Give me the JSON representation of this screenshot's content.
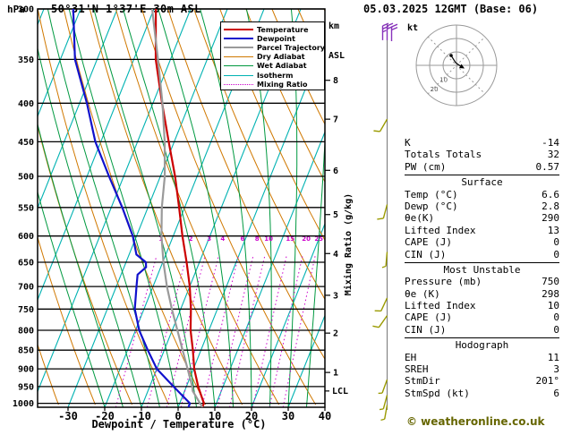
{
  "header": {
    "pressure_unit": "hPa",
    "station": "50°31'N 1°37'E 30m ASL",
    "datetime": "05.03.2025 12GMT (Base: 06)",
    "alt_unit_line1": "km",
    "alt_unit_line2": "ASL"
  },
  "legend": {
    "items": [
      {
        "label": "Temperature",
        "color": "#cc0000",
        "dash": ""
      },
      {
        "label": "Dewpoint",
        "color": "#1111cc",
        "dash": ""
      },
      {
        "label": "Parcel Trajectory",
        "color": "#9a9a9a",
        "dash": ""
      },
      {
        "label": "Dry Adiabat",
        "color": "#d07800",
        "dash": ""
      },
      {
        "label": "Wet Adiabat",
        "color": "#009940",
        "dash": ""
      },
      {
        "label": "Isotherm",
        "color": "#00b2b2",
        "dash": ""
      },
      {
        "label": "Mixing Ratio",
        "color": "#cc00cc",
        "dash": "dotted"
      }
    ]
  },
  "axes": {
    "xlabel": "Dewpoint / Temperature (°C)",
    "right_axis_label": "Mixing Ratio (g/kg)",
    "pressure_ticks": [
      300,
      350,
      400,
      450,
      500,
      550,
      600,
      650,
      700,
      750,
      800,
      850,
      900,
      950,
      1000
    ],
    "temp_ticks": [
      -30,
      -20,
      -10,
      0,
      10,
      20,
      30,
      40
    ],
    "km_ticks": [
      {
        "label": "8",
        "p": 373
      },
      {
        "label": "7",
        "p": 420
      },
      {
        "label": "6",
        "p": 491
      },
      {
        "label": "5",
        "p": 562
      },
      {
        "label": "4",
        "p": 633
      },
      {
        "label": "3",
        "p": 719
      },
      {
        "label": "2",
        "p": 807
      },
      {
        "label": "1",
        "p": 910
      }
    ],
    "lcl": {
      "label": "LCL",
      "p": 963
    },
    "mixing_ratio_values": [
      1,
      2,
      3,
      4,
      6,
      8,
      10,
      15,
      20,
      25
    ]
  },
  "chart_data": {
    "type": "line",
    "title": "Skew-T log-P sounding 50°31'N 1°37'E 30m ASL 05.03.2025 12GMT (Base: 06)",
    "x_axis": {
      "label": "Dewpoint / Temperature (°C)",
      "range": [
        -40,
        40
      ],
      "skewed_isotherms": true
    },
    "y_axis": {
      "label": "hPa",
      "scale": "log",
      "range": [
        300,
        1012
      ]
    },
    "series": [
      {
        "name": "Temperature",
        "color": "#cc0000",
        "points": [
          [
            1012,
            6.6
          ],
          [
            1000,
            6.6
          ],
          [
            950,
            3.2
          ],
          [
            900,
            0.2
          ],
          [
            850,
            -2.2
          ],
          [
            800,
            -5.0
          ],
          [
            750,
            -7.2
          ],
          [
            700,
            -10.0
          ],
          [
            650,
            -13.5
          ],
          [
            600,
            -17.5
          ],
          [
            550,
            -21.5
          ],
          [
            500,
            -26.0
          ],
          [
            450,
            -31.5
          ],
          [
            400,
            -37.5
          ],
          [
            350,
            -44.0
          ],
          [
            300,
            -49.5
          ]
        ]
      },
      {
        "name": "Dewpoint",
        "color": "#1111cc",
        "points": [
          [
            1012,
            2.8
          ],
          [
            1000,
            2.8
          ],
          [
            950,
            -3.5
          ],
          [
            900,
            -10.0
          ],
          [
            850,
            -14.5
          ],
          [
            800,
            -19.0
          ],
          [
            750,
            -22.5
          ],
          [
            700,
            -24.5
          ],
          [
            675,
            -25.5
          ],
          [
            660,
            -24.0
          ],
          [
            650,
            -24.6
          ],
          [
            635,
            -28.0
          ],
          [
            600,
            -31.0
          ],
          [
            550,
            -37.0
          ],
          [
            500,
            -44.0
          ],
          [
            450,
            -51.5
          ],
          [
            400,
            -58.0
          ],
          [
            350,
            -66.0
          ],
          [
            300,
            -72.0
          ]
        ]
      },
      {
        "name": "Parcel Trajectory",
        "color": "#9a9a9a",
        "points": [
          [
            1012,
            6.6
          ],
          [
            963,
            2.2
          ],
          [
            950,
            1.6
          ],
          [
            900,
            -1.6
          ],
          [
            850,
            -5.0
          ],
          [
            800,
            -8.6
          ],
          [
            750,
            -12.4
          ],
          [
            700,
            -16.2
          ],
          [
            650,
            -19.8
          ],
          [
            600,
            -23.2
          ],
          [
            550,
            -26.2
          ],
          [
            500,
            -28.8
          ],
          [
            450,
            -32.6
          ],
          [
            400,
            -37.4
          ],
          [
            350,
            -43.4
          ],
          [
            300,
            -50.5
          ]
        ]
      }
    ]
  },
  "wind_barbs": [
    {
      "p": 330,
      "dx": -5,
      "speed": 25,
      "dir": 0,
      "color": "#8833bb"
    },
    {
      "p": 330,
      "dx": 0,
      "speed": 20,
      "dir": 0,
      "color": "#8833bb"
    },
    {
      "p": 331,
      "dx": 5,
      "speed": 20,
      "dir": 0,
      "color": "#8833bb"
    },
    {
      "p": 420,
      "speed": 10,
      "dir": 210,
      "color": "#9a9a00"
    },
    {
      "p": 545,
      "speed": 10,
      "dir": 195,
      "color": "#9a9a00"
    },
    {
      "p": 630,
      "speed": 5,
      "dir": 185,
      "color": "#9a9a00"
    },
    {
      "p": 725,
      "speed": 10,
      "dir": 205,
      "color": "#9a9a00"
    },
    {
      "p": 765,
      "speed": 10,
      "dir": 215,
      "color": "#9a9a00"
    },
    {
      "p": 930,
      "speed": 5,
      "dir": 200,
      "color": "#9a9a00"
    },
    {
      "p": 975,
      "speed": 5,
      "dir": 195,
      "color": "#9a9a00"
    },
    {
      "p": 1005,
      "speed": 6,
      "dir": 190,
      "color": "#9a9a00"
    }
  ],
  "hodograph": {
    "unit": "kt",
    "ring_labels": [
      "10",
      "20"
    ]
  },
  "indices": {
    "rows_top": [
      {
        "label": "K",
        "value": "-14"
      },
      {
        "label": "Totals Totals",
        "value": "32"
      },
      {
        "label": "PW (cm)",
        "value": "0.57"
      }
    ],
    "sections": [
      {
        "title": "Surface",
        "rows": [
          {
            "label": "Temp (°C)",
            "value": "6.6"
          },
          {
            "label": "Dewp (°C)",
            "value": "2.8"
          },
          {
            "label": "θe(K)",
            "value": "290"
          },
          {
            "label": "Lifted Index",
            "value": "13"
          },
          {
            "label": "CAPE (J)",
            "value": "0"
          },
          {
            "label": "CIN (J)",
            "value": "0"
          }
        ]
      },
      {
        "title": "Most Unstable",
        "rows": [
          {
            "label": "Pressure (mb)",
            "value": "750"
          },
          {
            "label": "θe (K)",
            "value": "298"
          },
          {
            "label": "Lifted Index",
            "value": "10"
          },
          {
            "label": "CAPE (J)",
            "value": "0"
          },
          {
            "label": "CIN (J)",
            "value": "0"
          }
        ]
      },
      {
        "title": "Hodograph",
        "rows": [
          {
            "label": "EH",
            "value": "11"
          },
          {
            "label": "SREH",
            "value": "3"
          },
          {
            "label": "StmDir",
            "value": "201°"
          },
          {
            "label": "StmSpd (kt)",
            "value": "6"
          }
        ]
      }
    ]
  },
  "footer": {
    "copyright": "© weatheronline.co.uk",
    "color": "#666600"
  }
}
